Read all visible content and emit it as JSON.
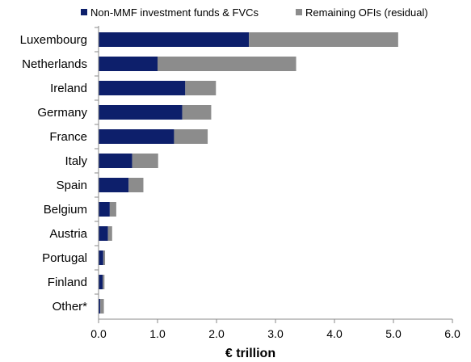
{
  "chart_data": {
    "type": "bar",
    "orientation": "horizontal",
    "stacked": true,
    "categories": [
      "Luxembourg",
      "Netherlands",
      "Ireland",
      "Germany",
      "France",
      "Italy",
      "Spain",
      "Belgium",
      "Austria",
      "Portugal",
      "Finland",
      "Other*"
    ],
    "series": [
      {
        "name": "Non-MMF investment funds & FVCs",
        "color": "#0d1f6b",
        "values": [
          2.55,
          1.0,
          1.47,
          1.42,
          1.28,
          0.57,
          0.51,
          0.19,
          0.16,
          0.08,
          0.07,
          0.03
        ]
      },
      {
        "name": "Remaining OFIs (residual)",
        "color": "#8c8c8c",
        "values": [
          2.53,
          2.35,
          0.52,
          0.49,
          0.57,
          0.44,
          0.25,
          0.11,
          0.07,
          0.03,
          0.03,
          0.06
        ]
      }
    ],
    "xlabel": "€ trillion",
    "ylabel": "",
    "xlim": [
      0,
      6
    ],
    "xticks": [
      "0.0",
      "1.0",
      "2.0",
      "3.0",
      "4.0",
      "5.0",
      "6.0"
    ],
    "legend_position": "top",
    "grid": false
  }
}
